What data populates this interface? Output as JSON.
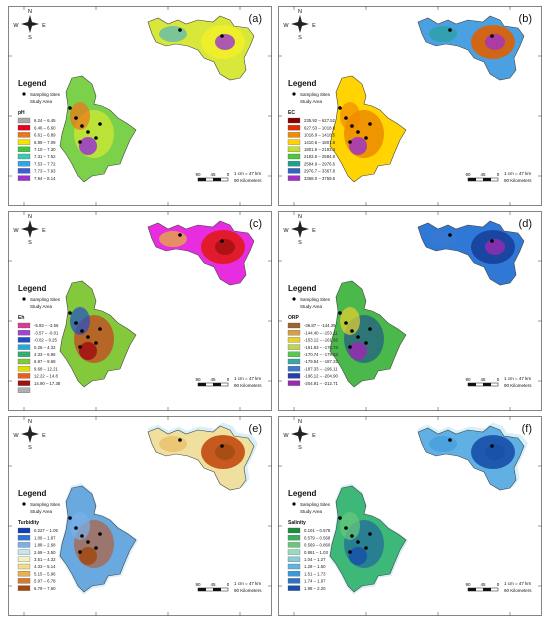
{
  "panels": [
    {
      "letter": "(a)",
      "param": "pH",
      "ramp": [
        "#a8a8a8",
        "#e8001c",
        "#f07418",
        "#f5e400",
        "#3ec83c",
        "#39c9b6",
        "#2ea6e6",
        "#3a5fd6",
        "#9a33d0",
        "#e6009a"
      ],
      "ranges": [
        "6.24 – 6.45",
        "6.46 – 6.60",
        "6.61 – 6.89",
        "6.89 – 7.09",
        "7.10 – 7.30",
        "7.31 – 7.52",
        "7.53 – 7.72",
        "7.73 – 7.93",
        "7.94 – 8.14",
        ""
      ],
      "north": "#d8e83a",
      "south": "#7bd24a",
      "hotspot": "#f1ee2a",
      "legend_items": 9
    },
    {
      "letter": "(b)",
      "param": "EC",
      "ramp": [
        "#8a0000",
        "#e03000",
        "#f58a00",
        "#ffd400",
        "#c4e02a",
        "#4bc83c",
        "#1ea08a",
        "#2f64c8",
        "#a032c8",
        "#b0a8c8"
      ],
      "ranges": [
        "235.92 – 627.52",
        "627.53 – 1018.8",
        "1018.9 – 1410.5",
        "1410.6 – 1801.8",
        "1801.9 – 2193.4",
        "2193.5 – 2584.8",
        "2584.9 – 2976.6",
        "2976.7 – 3367.8",
        "3368.0 – 3759.5",
        ""
      ],
      "north": "#4aa0e0",
      "south": "#ffd400",
      "hotspot": "#e06000",
      "legend_items": 9
    },
    {
      "letter": "(c)",
      "param": "Eh",
      "ramp": [
        "#d33c98",
        "#a642d0",
        "#1f4fc4",
        "#26a8d8",
        "#30b070",
        "#84c83c",
        "#e0e000",
        "#e86020",
        "#a01010",
        "#b0b0b0"
      ],
      "ranges": [
        "-5.93 – -3.56",
        "-3.57 – -0.01",
        "-0.02 – 0.25",
        "0.26 – 4.32",
        "4.33 – 6.96",
        "6.97 – 9.68",
        "9.68 – 12.21",
        "12.22 – 14.8",
        "14.90 – 17.38",
        ""
      ],
      "north": "#e82de0",
      "south": "#84c83c",
      "hotspot": "#e01818",
      "legend_items": 10
    },
    {
      "letter": "(d)",
      "param": "ORP",
      "ramp": [
        "#a0652a",
        "#d8a040",
        "#e8d030",
        "#b8d850",
        "#5ac850",
        "#3aa8a0",
        "#3a7ad0",
        "#263ea8",
        "#9a2ab0",
        "#b0b0b0"
      ],
      "ranges": [
        "-36.87 – -144.39",
        "-144.40 – -153.11",
        "-153.12 – -161.92",
        "-161.93 – -170.73",
        "-170.74 – -179.53",
        "-179.54 – -187.32",
        "-187.33 – -196.11",
        "-196.12 – -204.90",
        "-204.91 – -212.71",
        ""
      ],
      "north": "#2f78d6",
      "south": "#4ab84a",
      "hotspot": "#17409a",
      "legend_items": 9
    },
    {
      "letter": "(e)",
      "param": "Turbidity",
      "ramp": [
        "#1240b0",
        "#2f72d8",
        "#7ab0e8",
        "#c8e4f0",
        "#f0f0c0",
        "#f0dc8c",
        "#e8b050",
        "#d87a28",
        "#a04a10",
        "#c8a0d8"
      ],
      "ranges": [
        "0.227 – 1.05",
        "1.06 – 1.87",
        "1.88 – 2.68",
        "2.69 – 3.50",
        "3.51 – 4.32",
        "4.33 – 5.14",
        "5.15 – 5.96",
        "5.97 – 6.78",
        "6.79 – 7.60",
        ""
      ],
      "north": "#f0e0a0",
      "south": "#6aa8e0",
      "hotspot": "#c24a10",
      "legend_items": 9
    },
    {
      "letter": "(f)",
      "param": "Salinity",
      "ramp": [
        "#1c8c3c",
        "#38b060",
        "#6ac87a",
        "#98dcc0",
        "#88ccd8",
        "#60b4e0",
        "#3c98d8",
        "#2a74c8",
        "#1850a8",
        "#b0b0b0"
      ],
      "ranges": [
        "0.101 – 0.578",
        "0.579 – 0.568",
        "0.569 – 0.860",
        "0.861 – 1.03",
        "1.04 – 1.27",
        "1.28 – 1.50",
        "1.51 – 1.73",
        "1.74 – 1.97",
        "1.98 – 2.20",
        ""
      ],
      "north": "#60b0e4",
      "south": "#3eb878",
      "hotspot": "#1850a8",
      "legend_items": 9
    }
  ],
  "legend": {
    "title": "Legend",
    "sampling": "Sampling Sites",
    "study": "Study Area"
  },
  "scale": {
    "text1": "1 cm = 47 km",
    "text2": "90 Kilometers",
    "ticks": [
      "90",
      "45",
      "0"
    ]
  },
  "compass_letters": [
    "N",
    "S",
    "W",
    "E"
  ]
}
